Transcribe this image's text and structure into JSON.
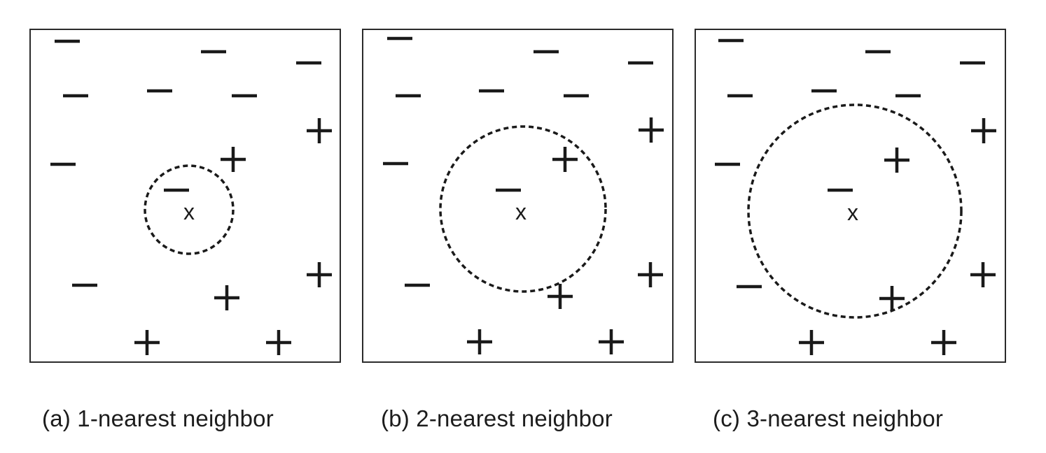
{
  "panels": [
    {
      "caption": "(a) 1-nearest neighbor",
      "query_label": "x"
    },
    {
      "caption": "(b) 2-nearest neighbor",
      "query_label": "x"
    },
    {
      "caption": "(c) 3-nearest neighbor",
      "query_label": "x"
    }
  ],
  "colors": {
    "ink": "#1a1a1a",
    "border": "#2b2b2b"
  }
}
